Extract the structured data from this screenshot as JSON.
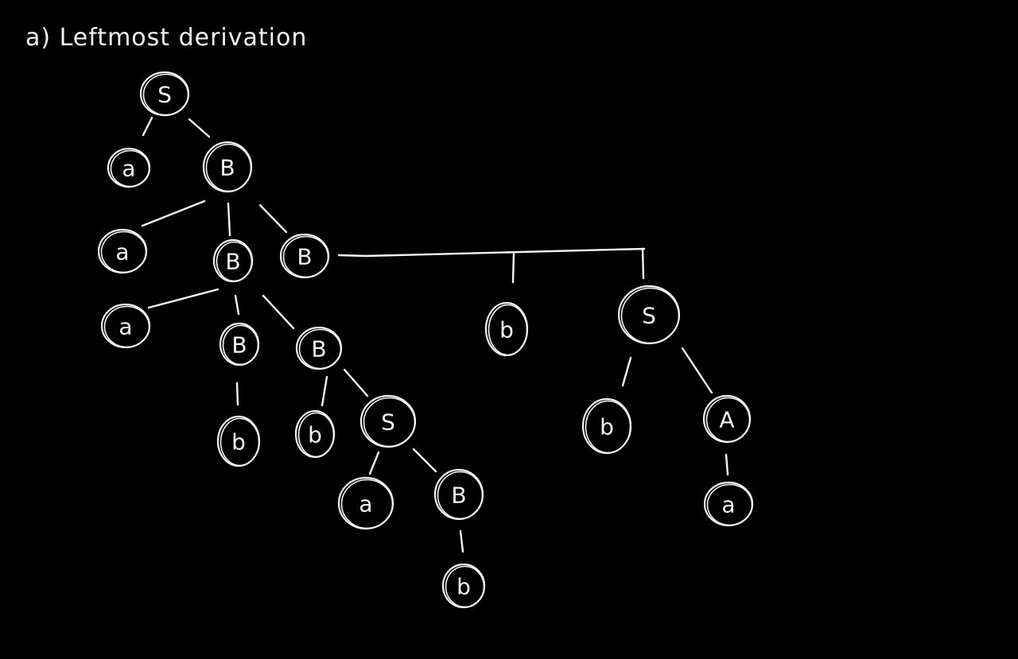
{
  "title": "a) Leftmost derivation",
  "colors": {
    "background": "#000000",
    "ink": "#f4f4f4"
  },
  "nodes": [
    {
      "id": "n1",
      "label": "S"
    },
    {
      "id": "n2",
      "label": "a"
    },
    {
      "id": "n3",
      "label": "B"
    },
    {
      "id": "n4",
      "label": "a"
    },
    {
      "id": "n5",
      "label": "B"
    },
    {
      "id": "n6",
      "label": "B"
    },
    {
      "id": "n7",
      "label": "a"
    },
    {
      "id": "n8",
      "label": "B"
    },
    {
      "id": "n9",
      "label": "B"
    },
    {
      "id": "n10",
      "label": "b"
    },
    {
      "id": "n11",
      "label": "b"
    },
    {
      "id": "n12",
      "label": "S"
    },
    {
      "id": "n13",
      "label": "a"
    },
    {
      "id": "n14",
      "label": "B"
    },
    {
      "id": "n15",
      "label": "b"
    },
    {
      "id": "n16",
      "label": "b"
    },
    {
      "id": "n17",
      "label": "S"
    },
    {
      "id": "n18",
      "label": "b"
    },
    {
      "id": "n19",
      "label": "A"
    },
    {
      "id": "n20",
      "label": "a"
    }
  ],
  "edges": [
    [
      "n1",
      "n2"
    ],
    [
      "n1",
      "n3"
    ],
    [
      "n3",
      "n4"
    ],
    [
      "n3",
      "n5"
    ],
    [
      "n3",
      "n6"
    ],
    [
      "n5",
      "n7"
    ],
    [
      "n5",
      "n8"
    ],
    [
      "n5",
      "n9"
    ],
    [
      "n8",
      "n10"
    ],
    [
      "n9",
      "n11"
    ],
    [
      "n9",
      "n12"
    ],
    [
      "n12",
      "n13"
    ],
    [
      "n12",
      "n14"
    ],
    [
      "n14",
      "n15"
    ],
    [
      "n6",
      "n16"
    ],
    [
      "n6",
      "n17"
    ],
    [
      "n17",
      "n18"
    ],
    [
      "n17",
      "n19"
    ],
    [
      "n19",
      "n20"
    ]
  ]
}
